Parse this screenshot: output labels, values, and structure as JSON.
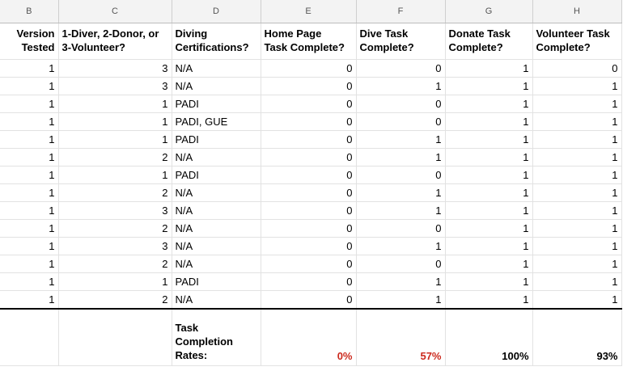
{
  "columns": [
    "B",
    "C",
    "D",
    "E",
    "F",
    "G",
    "H"
  ],
  "headers": {
    "b": [
      "Version",
      "Tested"
    ],
    "c": [
      "1-Diver, 2-Donor, or",
      "3-Volunteer?"
    ],
    "d": [
      "Diving",
      "Certifications?"
    ],
    "e": [
      "Home Page",
      "Task Complete?"
    ],
    "f": [
      "Dive Task",
      "Complete?"
    ],
    "g": [
      "Donate Task",
      "Complete?"
    ],
    "h": [
      "Volunteer Task",
      "Complete?"
    ]
  },
  "rows": [
    {
      "version": "1",
      "role": "3",
      "cert": "N/A",
      "home": "0",
      "dive": "0",
      "donate": "1",
      "volunteer": "0"
    },
    {
      "version": "1",
      "role": "3",
      "cert": "N/A",
      "home": "0",
      "dive": "1",
      "donate": "1",
      "volunteer": "1"
    },
    {
      "version": "1",
      "role": "1",
      "cert": "PADI",
      "home": "0",
      "dive": "0",
      "donate": "1",
      "volunteer": "1"
    },
    {
      "version": "1",
      "role": "1",
      "cert": "PADI, GUE",
      "home": "0",
      "dive": "0",
      "donate": "1",
      "volunteer": "1"
    },
    {
      "version": "1",
      "role": "1",
      "cert": "PADI",
      "home": "0",
      "dive": "1",
      "donate": "1",
      "volunteer": "1"
    },
    {
      "version": "1",
      "role": "2",
      "cert": "N/A",
      "home": "0",
      "dive": "1",
      "donate": "1",
      "volunteer": "1"
    },
    {
      "version": "1",
      "role": "1",
      "cert": "PADI",
      "home": "0",
      "dive": "0",
      "donate": "1",
      "volunteer": "1"
    },
    {
      "version": "1",
      "role": "2",
      "cert": "N/A",
      "home": "0",
      "dive": "1",
      "donate": "1",
      "volunteer": "1"
    },
    {
      "version": "1",
      "role": "3",
      "cert": "N/A",
      "home": "0",
      "dive": "1",
      "donate": "1",
      "volunteer": "1"
    },
    {
      "version": "1",
      "role": "2",
      "cert": "N/A",
      "home": "0",
      "dive": "0",
      "donate": "1",
      "volunteer": "1"
    },
    {
      "version": "1",
      "role": "3",
      "cert": "N/A",
      "home": "0",
      "dive": "1",
      "donate": "1",
      "volunteer": "1"
    },
    {
      "version": "1",
      "role": "2",
      "cert": "N/A",
      "home": "0",
      "dive": "0",
      "donate": "1",
      "volunteer": "1"
    },
    {
      "version": "1",
      "role": "1",
      "cert": "PADI",
      "home": "0",
      "dive": "1",
      "donate": "1",
      "volunteer": "1"
    },
    {
      "version": "1",
      "role": "2",
      "cert": "N/A",
      "home": "0",
      "dive": "1",
      "donate": "1",
      "volunteer": "1"
    }
  ],
  "summary": {
    "label": [
      "Task",
      "Completion",
      "Rates:"
    ],
    "home": "0%",
    "dive": "57%",
    "donate": "100%",
    "volunteer": "93%"
  },
  "colors": {
    "low_rate": "#cc2a1e",
    "high_rate": "#000000"
  }
}
